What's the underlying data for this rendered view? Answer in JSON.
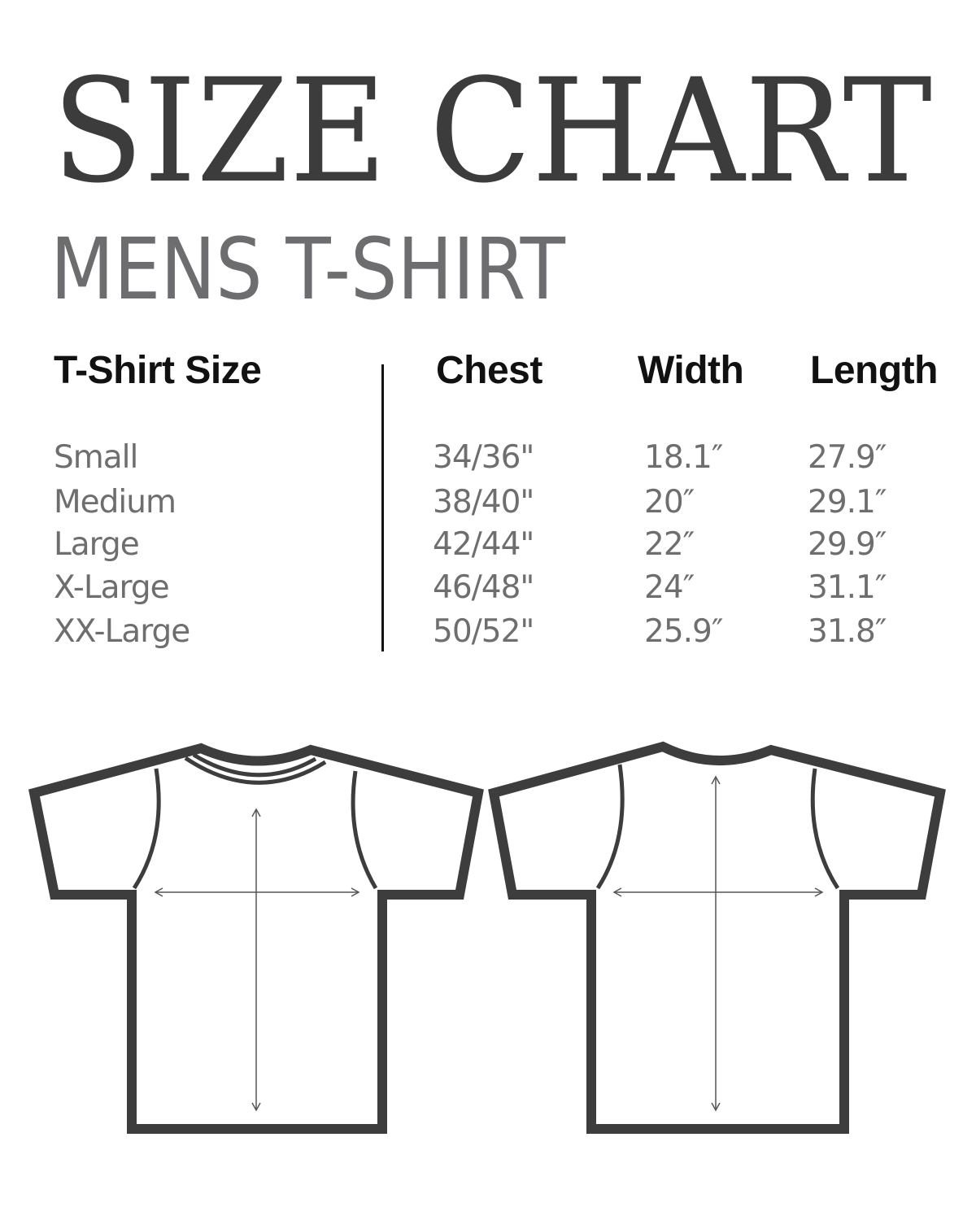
{
  "title": "SIZE CHART",
  "subtitle": "MENS T-SHIRT",
  "table": {
    "headers": [
      "T-Shirt Size",
      "Chest",
      "Width",
      "Length"
    ],
    "rows": [
      [
        "Small",
        "34/36\"",
        "18.1″",
        "27.9″"
      ],
      [
        "Medium",
        "38/40\"",
        "20″",
        "29.1″"
      ],
      [
        "Large",
        "42/44\"",
        "22″",
        "29.9″"
      ],
      [
        "X-Large",
        "46/48\"",
        "24″",
        "31.1″"
      ],
      [
        "XX-Large",
        "50/52\"",
        "25.9″",
        "31.8″"
      ]
    ]
  },
  "colors": {
    "title": "#3c3c3c",
    "subtitle": "#6d6d6f",
    "header": "#111111",
    "cell": "#6e6e6e",
    "shirt_outline": "#3d3d3d"
  },
  "diagrams": [
    "t-shirt-front",
    "t-shirt-back"
  ]
}
